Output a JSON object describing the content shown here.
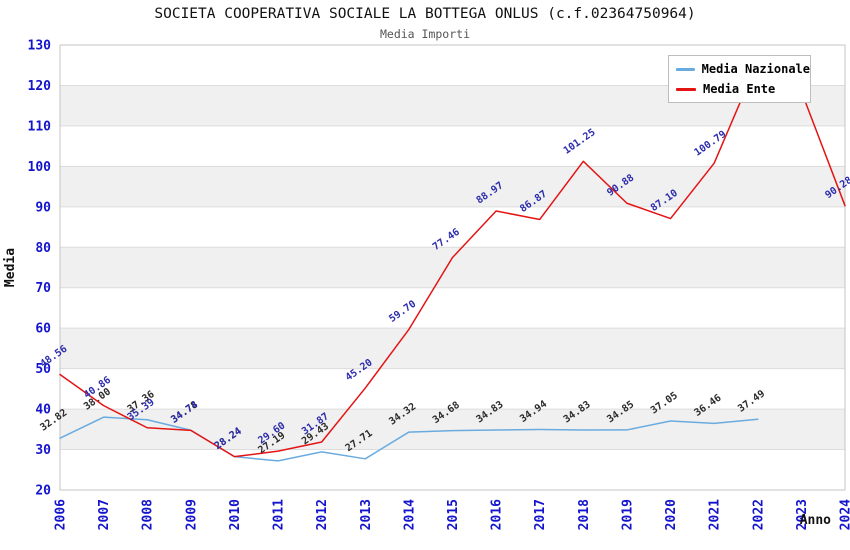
{
  "title": "SOCIETA COOPERATIVA SOCIALE LA BOTTEGA ONLUS (c.f.02364750964)",
  "subtitle": "Media Importi",
  "chart_data": {
    "type": "line",
    "xlabel": "Anno",
    "ylabel": "Media",
    "xlim": [
      2006,
      2024
    ],
    "ylim": [
      20,
      130
    ],
    "yticks": [
      20,
      30,
      40,
      50,
      60,
      70,
      80,
      90,
      100,
      110,
      120,
      130
    ],
    "xticks": [
      2006,
      2007,
      2008,
      2009,
      2010,
      2011,
      2012,
      2013,
      2014,
      2015,
      2016,
      2017,
      2018,
      2019,
      2020,
      2021,
      2022,
      2023,
      2024
    ],
    "grid": "horizontal-bands",
    "legend_position": "top-right",
    "series": [
      {
        "name": "Media Nazionale",
        "color": "#6aabdf",
        "label_color": "#2b2b2b",
        "x": [
          2006,
          2007,
          2008,
          2009,
          2010,
          2011,
          2012,
          2013,
          2014,
          2015,
          2016,
          2017,
          2018,
          2019,
          2020,
          2021,
          2022
        ],
        "values": [
          32.82,
          38.0,
          37.36,
          34.78,
          28.24,
          27.19,
          29.43,
          27.71,
          34.32,
          34.68,
          34.83,
          34.94,
          34.83,
          34.85,
          37.05,
          36.46,
          37.49
        ],
        "hidden_label_years": []
      },
      {
        "name": "Media Ente",
        "color": "#e41414",
        "label_color": "#2c2cac",
        "x": [
          2006,
          2007,
          2008,
          2009,
          2010,
          2011,
          2012,
          2013,
          2014,
          2015,
          2016,
          2017,
          2018,
          2019,
          2020,
          2021,
          2022,
          2023,
          2024
        ],
        "values": [
          48.56,
          40.86,
          35.39,
          34.74,
          28.24,
          29.6,
          31.87,
          45.2,
          59.7,
          77.46,
          88.97,
          86.87,
          101.25,
          90.88,
          87.1,
          100.79,
          126.0,
          118.5,
          90.28
        ],
        "hidden_label_years": [
          2022,
          2023
        ]
      }
    ],
    "colors": {
      "tick_label": "#1414cc",
      "band_gray": "#f0f0f0",
      "gridline": "#dcdcdc",
      "frame": "#c4c4c4",
      "axis_title": "#111111"
    }
  }
}
